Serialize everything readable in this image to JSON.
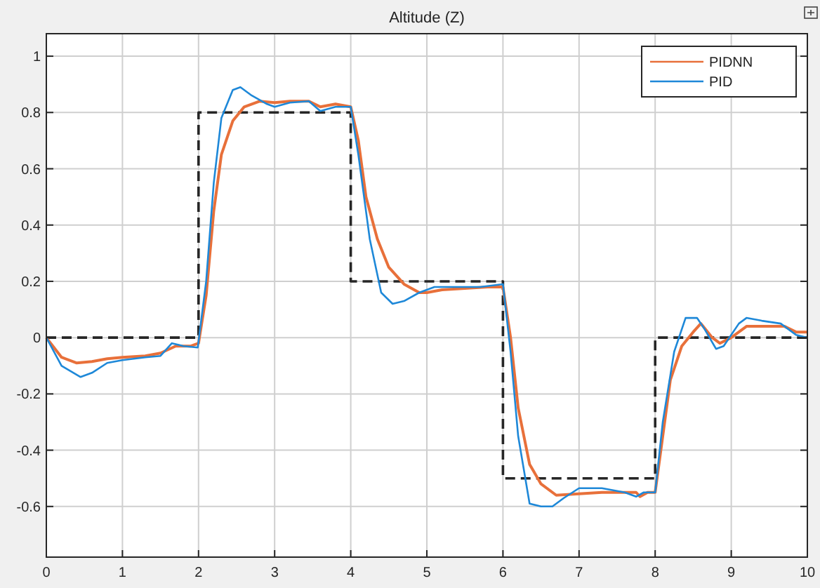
{
  "chart_data": {
    "type": "line",
    "title": "Altitude (Z)",
    "xlim": [
      0,
      10
    ],
    "ylim": [
      -0.78,
      1.08
    ],
    "xticks": [
      0,
      1,
      2,
      3,
      4,
      5,
      6,
      7,
      8,
      9,
      10
    ],
    "yticks": [
      -0.6,
      -0.4,
      -0.2,
      0,
      0.2,
      0.4,
      0.6,
      0.8,
      1
    ],
    "grid": true,
    "legend": "top right",
    "series": [
      {
        "color": "#262626",
        "line_style": "dashed",
        "x": [
          0,
          2,
          2,
          4,
          4,
          6,
          6,
          8,
          8,
          10
        ],
        "values": [
          0,
          0,
          0.8,
          0.8,
          0.2,
          0.2,
          -0.5,
          -0.5,
          0,
          0
        ]
      },
      {
        "name": "PIDNN",
        "color": "#e8703a",
        "line_style": "solid",
        "x": [
          0,
          0.2,
          0.4,
          0.6,
          0.8,
          1.0,
          1.3,
          1.5,
          1.7,
          1.9,
          2.0,
          2.1,
          2.2,
          2.3,
          2.45,
          2.6,
          2.8,
          3.0,
          3.2,
          3.45,
          3.6,
          3.8,
          4.0,
          4.1,
          4.2,
          4.35,
          4.5,
          4.7,
          4.9,
          5.0,
          5.2,
          5.5,
          5.8,
          6.0,
          6.1,
          6.2,
          6.35,
          6.5,
          6.7,
          7.0,
          7.3,
          7.6,
          7.75,
          7.8,
          7.9,
          8.0,
          8.1,
          8.2,
          8.35,
          8.5,
          8.6,
          8.75,
          8.85,
          9.0,
          9.2,
          9.5,
          9.7,
          9.85,
          10
        ],
        "values": [
          0,
          -0.07,
          -0.09,
          -0.085,
          -0.075,
          -0.07,
          -0.065,
          -0.055,
          -0.03,
          -0.03,
          -0.02,
          0.15,
          0.45,
          0.65,
          0.77,
          0.82,
          0.84,
          0.835,
          0.84,
          0.84,
          0.82,
          0.83,
          0.82,
          0.7,
          0.5,
          0.35,
          0.25,
          0.19,
          0.16,
          0.16,
          0.17,
          0.175,
          0.18,
          0.18,
          0.0,
          -0.25,
          -0.45,
          -0.52,
          -0.56,
          -0.555,
          -0.55,
          -0.55,
          -0.55,
          -0.565,
          -0.55,
          -0.55,
          -0.35,
          -0.15,
          -0.03,
          0.02,
          0.05,
          0.0,
          -0.02,
          0.0,
          0.04,
          0.04,
          0.04,
          0.02,
          0.02
        ]
      },
      {
        "name": "PID",
        "color": "#1e88d8",
        "line_style": "solid",
        "x": [
          0,
          0.2,
          0.45,
          0.6,
          0.8,
          1.0,
          1.3,
          1.5,
          1.65,
          1.8,
          1.99,
          2.1,
          2.2,
          2.3,
          2.45,
          2.55,
          2.7,
          2.9,
          3.0,
          3.2,
          3.45,
          3.6,
          3.8,
          4.0,
          4.1,
          4.25,
          4.4,
          4.55,
          4.7,
          4.9,
          5.1,
          5.4,
          5.7,
          6.0,
          6.1,
          6.2,
          6.35,
          6.5,
          6.65,
          6.8,
          7.0,
          7.3,
          7.6,
          7.75,
          7.85,
          8.0,
          8.1,
          8.25,
          8.4,
          8.55,
          8.65,
          8.8,
          8.9,
          9.1,
          9.2,
          9.4,
          9.65,
          9.85,
          10
        ],
        "values": [
          0,
          -0.1,
          -0.14,
          -0.125,
          -0.09,
          -0.08,
          -0.07,
          -0.065,
          -0.02,
          -0.03,
          -0.035,
          0.2,
          0.55,
          0.78,
          0.88,
          0.89,
          0.86,
          0.83,
          0.82,
          0.835,
          0.84,
          0.805,
          0.82,
          0.82,
          0.65,
          0.35,
          0.16,
          0.12,
          0.13,
          0.16,
          0.18,
          0.18,
          0.18,
          0.19,
          -0.05,
          -0.35,
          -0.59,
          -0.6,
          -0.6,
          -0.57,
          -0.535,
          -0.535,
          -0.55,
          -0.565,
          -0.55,
          -0.55,
          -0.3,
          -0.05,
          0.07,
          0.07,
          0.03,
          -0.04,
          -0.03,
          0.05,
          0.07,
          0.06,
          0.05,
          0.01,
          0.0
        ]
      }
    ]
  }
}
